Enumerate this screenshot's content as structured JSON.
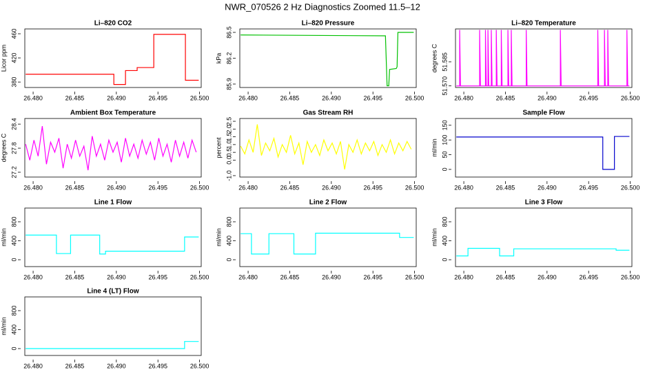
{
  "title": "NWR_070526  2 Hz Diagnostics Zoomed 11.5–12",
  "chart_data": [
    {
      "type": "line",
      "title": "Li–820 CO2",
      "ylabel": "Licor ppm",
      "color": "#ff0000",
      "x": [
        26.4791,
        26.4897,
        26.4897,
        26.4911,
        26.4911,
        26.4925,
        26.4925,
        26.4945,
        26.4945,
        26.4983,
        26.4983,
        26.4999
      ],
      "values": [
        393,
        393,
        376,
        376,
        399,
        399,
        404,
        404,
        459,
        459,
        383,
        383
      ],
      "xlim": [
        26.479,
        26.5002
      ],
      "xticks": [
        {
          "value": 26.48,
          "label": "26.480"
        },
        26.485,
        {
          "value": 26.49,
          "label": "26.490"
        },
        26.495,
        {
          "value": 26.5,
          "label": "26.500"
        }
      ],
      "ylim": [
        371,
        468
      ],
      "yticks": [
        380,
        420,
        460
      ]
    },
    {
      "type": "line",
      "title": "Li–820 Pressure",
      "ylabel": "kPa",
      "color": "#00c000",
      "x": [
        26.4791,
        26.4965,
        26.4967,
        26.4969,
        26.497,
        26.4978,
        26.4979,
        26.498,
        26.4999
      ],
      "values": [
        86.47,
        86.46,
        85.88,
        85.88,
        86.07,
        86.08,
        86.1,
        86.5,
        86.5
      ],
      "xlim": [
        26.479,
        26.5002
      ],
      "xticks": [
        {
          "value": 26.48,
          "label": "26.480"
        },
        26.485,
        {
          "value": 26.49,
          "label": "26.490"
        },
        26.495,
        {
          "value": 26.5,
          "label": "26.500"
        }
      ],
      "ylim": [
        85.86,
        86.54
      ],
      "yticks": [
        85.9,
        86.2,
        86.5
      ]
    },
    {
      "type": "line",
      "title": "Li–820 Temperature",
      "ylabel": "degrees C",
      "color": "#ff00ff",
      "x": [
        26.4791,
        26.4795,
        26.4795,
        26.4796,
        26.4819,
        26.4819,
        26.482,
        26.4826,
        26.4826,
        26.4827,
        26.4829,
        26.4829,
        26.483,
        26.4833,
        26.4833,
        26.4834,
        26.4839,
        26.4839,
        26.484,
        26.4845,
        26.4845,
        26.4846,
        26.4853,
        26.4853,
        26.4854,
        26.4857,
        26.4857,
        26.4858,
        26.4875,
        26.4875,
        26.4876,
        26.4916,
        26.4916,
        26.4917,
        26.4961,
        26.4961,
        26.4962,
        26.4969,
        26.4969,
        26.497,
        26.4973,
        26.4973,
        26.4974,
        26.4996,
        26.4996,
        26.4997,
        26.4999
      ],
      "values": [
        51.57,
        51.57,
        51.605,
        51.57,
        51.57,
        51.605,
        51.57,
        51.57,
        51.605,
        51.57,
        51.57,
        51.605,
        51.57,
        51.57,
        51.605,
        51.57,
        51.57,
        51.605,
        51.57,
        51.57,
        51.605,
        51.57,
        51.57,
        51.605,
        51.57,
        51.57,
        51.605,
        51.57,
        51.57,
        51.605,
        51.57,
        51.57,
        51.605,
        51.57,
        51.57,
        51.605,
        51.57,
        51.57,
        51.605,
        51.57,
        51.57,
        51.605,
        51.57,
        51.57,
        51.605,
        51.57,
        51.57
      ],
      "xlim": [
        26.479,
        26.5002
      ],
      "xticks": [
        {
          "value": 26.48,
          "label": "26.480"
        },
        26.485,
        {
          "value": 26.49,
          "label": "26.490"
        },
        26.495,
        {
          "value": 26.5,
          "label": "26.500"
        }
      ],
      "ylim": [
        51.569,
        51.6056
      ],
      "yticks": [
        {
          "value": 51.57,
          "label": "51.570"
        },
        51.585
      ]
    },
    {
      "type": "line",
      "title": "Ambient Box Temperature",
      "ylabel": "degrees C",
      "color": "#ff00ff",
      "x": [
        26.4791,
        26.4796,
        26.4801,
        26.4806,
        26.4811,
        26.4816,
        26.4821,
        26.4826,
        26.4831,
        26.4836,
        26.4841,
        26.4846,
        26.4851,
        26.4856,
        26.4861,
        26.4866,
        26.4871,
        26.4876,
        26.4881,
        26.4886,
        26.4891,
        26.4896,
        26.4901,
        26.4906,
        26.4911,
        26.4916,
        26.4921,
        26.4926,
        26.4931,
        26.4936,
        26.4941,
        26.4946,
        26.4951,
        26.4956,
        26.4961,
        26.4966,
        26.4971,
        26.4976,
        26.4981,
        26.4986,
        26.4991,
        26.4996
      ],
      "values": [
        27.9,
        27.5,
        28.0,
        27.6,
        28.35,
        27.4,
        27.95,
        27.7,
        28.05,
        27.3,
        27.9,
        27.55,
        28.0,
        27.6,
        27.85,
        27.25,
        28.1,
        27.6,
        27.9,
        27.5,
        28.0,
        27.7,
        27.95,
        27.45,
        28.05,
        27.6,
        27.9,
        27.55,
        28.0,
        27.65,
        27.95,
        27.5,
        28.05,
        27.6,
        27.9,
        27.45,
        28.0,
        27.6,
        27.95,
        27.55,
        28.0,
        27.7
      ],
      "xlim": [
        26.479,
        26.5002
      ],
      "xticks": [
        {
          "value": 26.48,
          "label": "26.480"
        },
        26.485,
        {
          "value": 26.49,
          "label": "26.490"
        },
        26.495,
        {
          "value": 26.5,
          "label": "26.500"
        }
      ],
      "ylim": [
        27.08,
        28.54
      ],
      "yticks": [
        27.2,
        27.8,
        28.4
      ]
    },
    {
      "type": "line",
      "title": "Gas Stream RH",
      "ylabel": "percent",
      "color": "#ffff00",
      "x": [
        26.4791,
        26.4796,
        26.4801,
        26.4806,
        26.4811,
        26.4816,
        26.4821,
        26.4826,
        26.4831,
        26.4836,
        26.4841,
        26.4846,
        26.4851,
        26.4856,
        26.4861,
        26.4866,
        26.4871,
        26.4876,
        26.4881,
        26.4886,
        26.4891,
        26.4896,
        26.4901,
        26.4906,
        26.4911,
        26.4916,
        26.4921,
        26.4926,
        26.4931,
        26.4936,
        26.4941,
        26.4946,
        26.4951,
        26.4956,
        26.4961,
        26.4966,
        26.4971,
        26.4976,
        26.4981,
        26.4986,
        26.4991,
        26.4996
      ],
      "values": [
        0.9,
        0.4,
        1.3,
        0.5,
        2.3,
        0.3,
        1.1,
        0.6,
        1.4,
        0.2,
        1.0,
        0.5,
        1.6,
        0.4,
        1.1,
        -0.3,
        1.2,
        0.5,
        1.0,
        0.3,
        1.3,
        0.6,
        1.1,
        0.4,
        1.2,
        -0.6,
        1.0,
        0.5,
        1.3,
        0.4,
        1.1,
        0.6,
        1.2,
        0.3,
        1.0,
        0.5,
        1.3,
        0.4,
        1.1,
        0.6,
        1.2,
        0.7
      ],
      "xlim": [
        26.479,
        26.5002
      ],
      "xticks": [
        {
          "value": 26.48,
          "label": "26.480"
        },
        26.485,
        {
          "value": 26.49,
          "label": "26.490"
        },
        26.495,
        {
          "value": 26.5,
          "label": "26.500"
        }
      ],
      "ylim": [
        -1.09,
        2.68
      ],
      "yticks": [
        {
          "value": -1,
          "label": "-1.0"
        },
        {
          "value": 0,
          "label": "0.0"
        },
        0.5,
        {
          "value": 1,
          "label": "1.0"
        },
        1.5,
        {
          "value": 2,
          "label": "2.0"
        },
        2.5
      ]
    },
    {
      "type": "line",
      "title": "Sample Flow",
      "ylabel": "ml/min",
      "color": "#0000cc",
      "x": [
        26.4791,
        26.4967,
        26.4967,
        26.4981,
        26.4981,
        26.4999
      ],
      "values": [
        110,
        110,
        0,
        0,
        112,
        112
      ],
      "xlim": [
        26.479,
        26.5002
      ],
      "xticks": [
        {
          "value": 26.48,
          "label": "26.480"
        },
        26.485,
        {
          "value": 26.49,
          "label": "26.490"
        },
        26.495,
        {
          "value": 26.5,
          "label": "26.500"
        }
      ],
      "ylim": [
        -26,
        173
      ],
      "yticks": [
        0,
        50,
        100,
        150
      ]
    },
    {
      "type": "line",
      "title": "Line 1 Flow",
      "ylabel": "ml/min",
      "color": "#00ffff",
      "x": [
        26.4791,
        26.4828,
        26.4828,
        26.4845,
        26.4845,
        26.488,
        26.488,
        26.4887,
        26.4887,
        26.4982,
        26.4982,
        26.4999
      ],
      "values": [
        520,
        520,
        130,
        130,
        520,
        520,
        120,
        120,
        180,
        180,
        480,
        480
      ],
      "xlim": [
        26.479,
        26.5002
      ],
      "xticks": [
        {
          "value": 26.48,
          "label": "26.480"
        },
        26.485,
        {
          "value": 26.49,
          "label": "26.490"
        },
        26.495,
        {
          "value": 26.5,
          "label": "26.500"
        }
      ],
      "ylim": [
        -145,
        1090
      ],
      "yticks": [
        0,
        400,
        800
      ]
    },
    {
      "type": "line",
      "title": "Line 2 Flow",
      "ylabel": "ml/min",
      "color": "#00ffff",
      "x": [
        26.4791,
        26.4804,
        26.4804,
        26.4825,
        26.4825,
        26.4855,
        26.4855,
        26.4881,
        26.4881,
        26.4982,
        26.4982,
        26.4999
      ],
      "values": [
        550,
        550,
        120,
        120,
        550,
        550,
        120,
        120,
        560,
        560,
        470,
        470
      ],
      "xlim": [
        26.479,
        26.5002
      ],
      "xticks": [
        {
          "value": 26.48,
          "label": "26.480"
        },
        26.485,
        {
          "value": 26.49,
          "label": "26.490"
        },
        26.495,
        {
          "value": 26.5,
          "label": "26.500"
        }
      ],
      "ylim": [
        -145,
        1090
      ],
      "yticks": [
        0,
        400,
        800
      ]
    },
    {
      "type": "line",
      "title": "Line 3 Flow",
      "ylabel": "ml/min",
      "color": "#00ffff",
      "x": [
        26.4791,
        26.4805,
        26.4805,
        26.4843,
        26.4843,
        26.486,
        26.486,
        26.4983,
        26.4983,
        26.4999
      ],
      "values": [
        80,
        80,
        240,
        240,
        80,
        80,
        230,
        230,
        200,
        200
      ],
      "xlim": [
        26.479,
        26.5002
      ],
      "xticks": [
        {
          "value": 26.48,
          "label": "26.480"
        },
        26.485,
        {
          "value": 26.49,
          "label": "26.490"
        },
        26.495,
        {
          "value": 26.5,
          "label": "26.500"
        }
      ],
      "ylim": [
        -145,
        1090
      ],
      "yticks": [
        0,
        400,
        800
      ]
    },
    {
      "type": "line",
      "title": "Line 4 (LT) Flow",
      "ylabel": "ml/min",
      "color": "#00ffff",
      "x": [
        26.4791,
        26.4982,
        26.4982,
        26.4999
      ],
      "values": [
        0,
        0,
        150,
        150
      ],
      "xlim": [
        26.479,
        26.5002
      ],
      "xticks": [
        {
          "value": 26.48,
          "label": "26.480"
        },
        26.485,
        {
          "value": 26.49,
          "label": "26.490"
        },
        26.495,
        {
          "value": 26.5,
          "label": "26.500"
        }
      ],
      "ylim": [
        -145,
        1090
      ],
      "yticks": [
        0,
        400,
        800
      ]
    }
  ]
}
